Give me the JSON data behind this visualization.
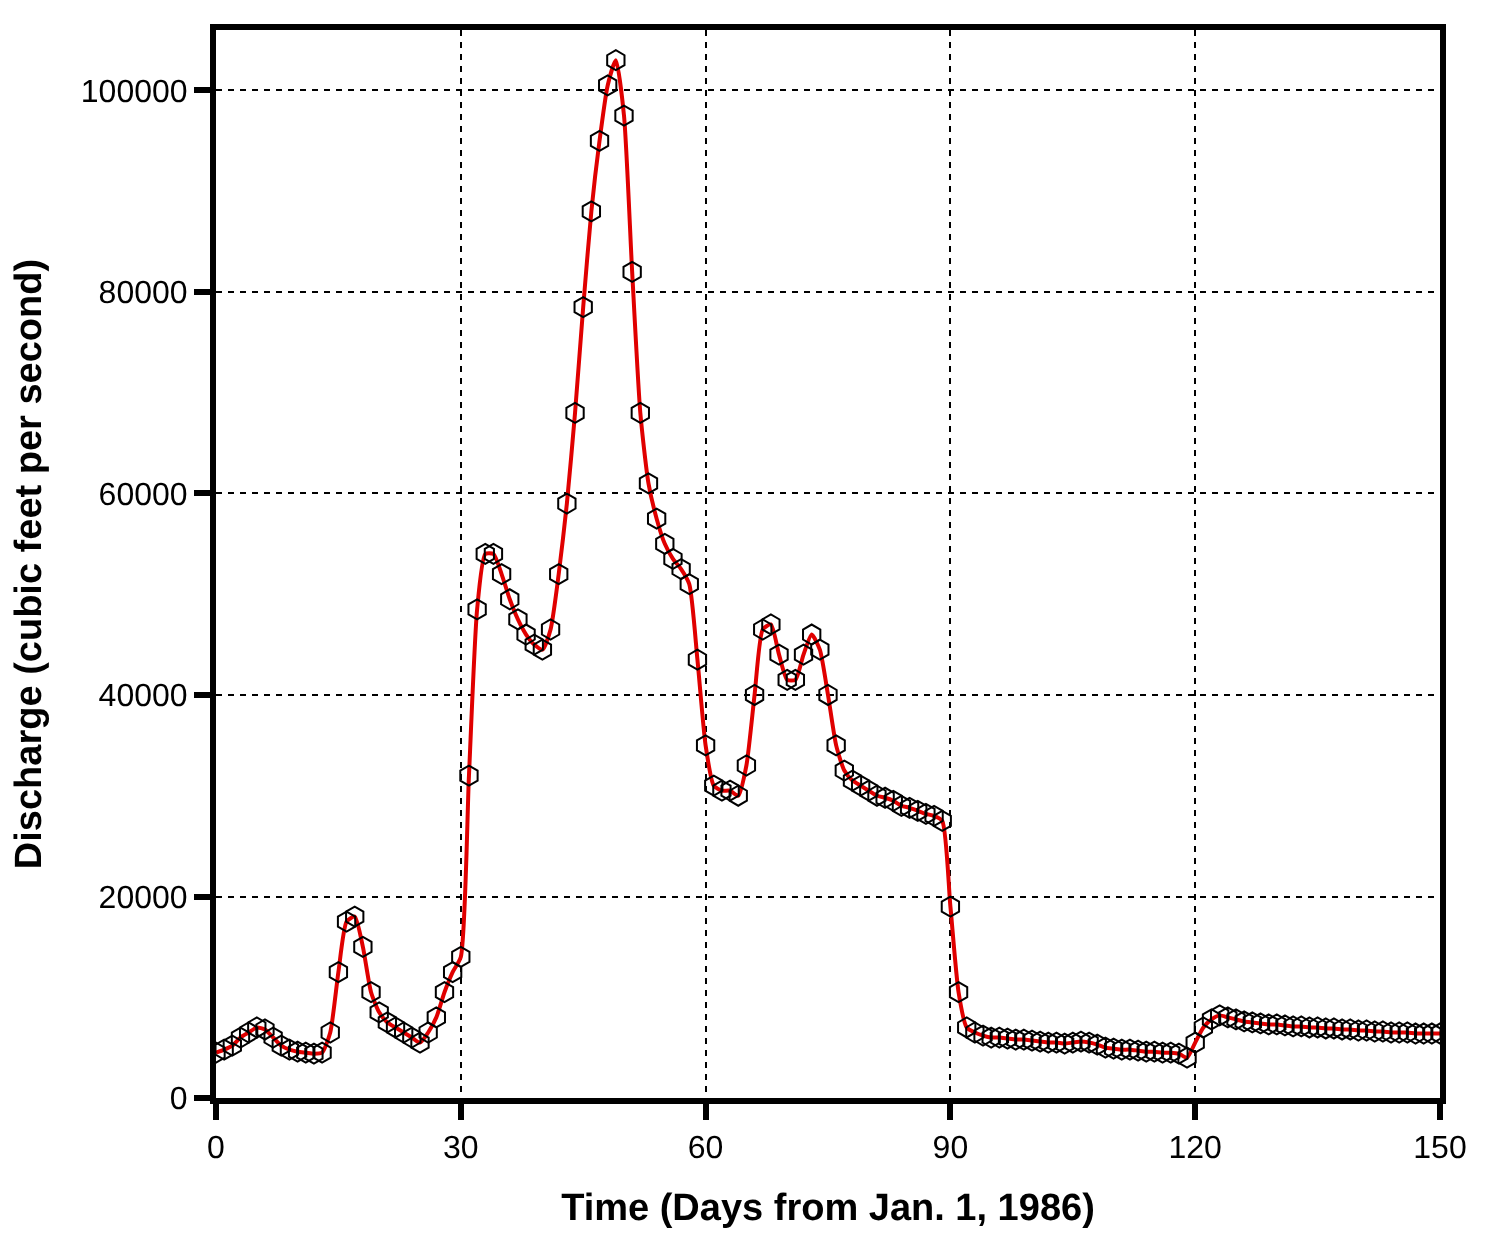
{
  "chart_data": {
    "type": "line",
    "xlabel": "Time (Days from Jan. 1, 1986)",
    "ylabel": "Discharge (cubic feet per second)",
    "x": [
      0,
      1,
      2,
      3,
      4,
      5,
      6,
      7,
      8,
      9,
      10,
      11,
      12,
      13,
      14,
      15,
      16,
      17,
      18,
      19,
      20,
      21,
      22,
      23,
      24,
      25,
      26,
      27,
      28,
      29,
      30,
      31,
      32,
      33,
      34,
      35,
      36,
      37,
      38,
      39,
      40,
      41,
      42,
      43,
      44,
      45,
      46,
      47,
      48,
      49,
      50,
      51,
      52,
      53,
      54,
      55,
      56,
      57,
      58,
      59,
      60,
      61,
      62,
      63,
      64,
      65,
      66,
      67,
      68,
      69,
      70,
      71,
      72,
      73,
      74,
      75,
      76,
      77,
      78,
      79,
      80,
      81,
      82,
      83,
      84,
      85,
      86,
      87,
      88,
      89,
      90,
      91,
      92,
      93,
      94,
      95,
      96,
      97,
      98,
      99,
      100,
      101,
      102,
      103,
      104,
      105,
      106,
      107,
      108,
      109,
      110,
      111,
      112,
      113,
      114,
      115,
      116,
      117,
      118,
      119,
      120,
      121,
      122,
      123,
      124,
      125,
      126,
      127,
      128,
      129,
      130,
      131,
      132,
      133,
      134,
      135,
      136,
      137,
      138,
      139,
      140,
      141,
      142,
      143,
      144,
      145,
      146,
      147,
      148,
      149,
      150
    ],
    "series": [
      {
        "color": "#e00000",
        "values": [
          4500,
          4800,
          5200,
          6000,
          6500,
          7000,
          6800,
          6000,
          5200,
          4800,
          4600,
          4500,
          4400,
          4500,
          6500,
          12500,
          17500,
          18000,
          15000,
          10500,
          8500,
          7500,
          7000,
          6500,
          6000,
          5500,
          6500,
          8000,
          10500,
          12500,
          14000,
          32000,
          48500,
          54000,
          54000,
          52000,
          49500,
          47500,
          46000,
          45000,
          44500,
          46500,
          52000,
          59000,
          68000,
          78500,
          88000,
          95000,
          100500,
          103000,
          97500,
          82000,
          68000,
          61000,
          57500,
          55000,
          53500,
          52500,
          51000,
          43500,
          35000,
          31000,
          30500,
          30500,
          30000,
          33000,
          40000,
          46500,
          47000,
          44000,
          41500,
          41500,
          44000,
          46000,
          44500,
          40000,
          35000,
          32500,
          31500,
          31000,
          30500,
          30000,
          29800,
          29500,
          29000,
          28800,
          28500,
          28200,
          28000,
          27500,
          19000,
          10500,
          7000,
          6500,
          6200,
          6000,
          6000,
          5900,
          5800,
          5800,
          5700,
          5600,
          5500,
          5500,
          5400,
          5500,
          5600,
          5500,
          5300,
          5000,
          4900,
          4800,
          4800,
          4700,
          4600,
          4600,
          4500,
          4500,
          4400,
          4000,
          5500,
          7000,
          7800,
          8200,
          8000,
          7800,
          7600,
          7500,
          7400,
          7300,
          7300,
          7200,
          7100,
          7100,
          7000,
          7000,
          6900,
          6900,
          6800,
          6800,
          6700,
          6700,
          6600,
          6600,
          6500,
          6500,
          6500,
          6400,
          6400,
          6400,
          6400
        ]
      }
    ],
    "xlim": [
      0,
      150
    ],
    "xticks": [
      0,
      30,
      60,
      90,
      120,
      150
    ],
    "ylim": [
      0,
      106000
    ],
    "yticks": [
      0,
      20000,
      40000,
      60000,
      80000,
      100000
    ],
    "grid": true,
    "marker": "circle",
    "line_style": "solid"
  }
}
